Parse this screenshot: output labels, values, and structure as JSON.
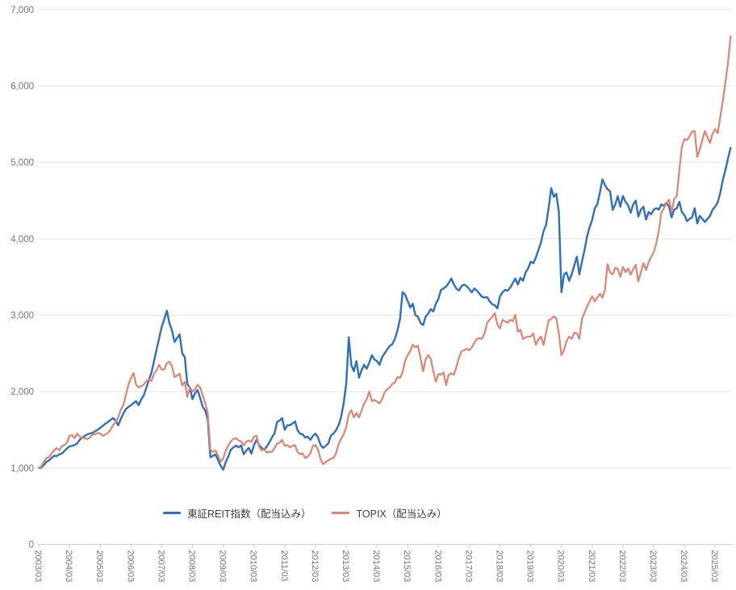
{
  "chart_data": {
    "type": "line",
    "title": "",
    "xlabel": "",
    "ylabel": "",
    "ylim": [
      0,
      7000
    ],
    "grid": "horizontal",
    "legend_position": "bottom-inside-left",
    "start_month": "2003/03",
    "end_month": "2025/09",
    "months_per_x_tick": 12,
    "x_tick_labels": [
      "2003/03",
      "2004/03",
      "2005/03",
      "2006/03",
      "2007/03",
      "2008/03",
      "2009/03",
      "2010/03",
      "2011/03",
      "2012/03",
      "2013/03",
      "2014/03",
      "2015/03",
      "2016/03",
      "2017/03",
      "2018/03",
      "2019/03",
      "2020/03",
      "2021/03",
      "2022/03",
      "2023/03",
      "2024/03",
      "2025/03"
    ],
    "y_ticks": [
      {
        "value": 0,
        "label": "0"
      },
      {
        "value": 1000,
        "label": "1,000"
      },
      {
        "value": 2000,
        "label": "2,000"
      },
      {
        "value": 3000,
        "label": "3,000"
      },
      {
        "value": 4000,
        "label": "4,000"
      },
      {
        "value": 5000,
        "label": "5,000"
      },
      {
        "value": 6000,
        "label": "6,000"
      },
      {
        "value": 7000,
        "label": "7,000"
      }
    ],
    "colors": {
      "grid": "#e3e3e3",
      "axis": "#c9d4ee",
      "tick_label": "#757575",
      "legend_text": "#3d3d3d",
      "background": "#ffffff"
    },
    "series": [
      {
        "name": "東証REIT指数（配当込み）",
        "color": "#2e6fbe",
        "values": [
          1000,
          1005,
          1040,
          1080,
          1100,
          1130,
          1160,
          1155,
          1180,
          1190,
          1220,
          1255,
          1283,
          1290,
          1300,
          1320,
          1370,
          1400,
          1421,
          1440,
          1452,
          1460,
          1480,
          1500,
          1526,
          1550,
          1580,
          1600,
          1630,
          1653,
          1620,
          1558,
          1640,
          1710,
          1769,
          1800,
          1822,
          1850,
          1875,
          1822,
          1900,
          1950,
          2050,
          2150,
          2250,
          2400,
          2550,
          2700,
          2847,
          2950,
          3058,
          2899,
          2800,
          2650,
          2700,
          2750,
          2500,
          2450,
          2100,
          2050,
          1900,
          1980,
          2020,
          1917,
          1800,
          1750,
          1632,
          1140,
          1160,
          1177,
          1100,
          1030,
          977,
          1080,
          1150,
          1241,
          1270,
          1294,
          1270,
          1294,
          1180,
          1230,
          1262,
          1188,
          1300,
          1368,
          1300,
          1262,
          1241,
          1280,
          1336,
          1400,
          1450,
          1600,
          1620,
          1653,
          1500,
          1558,
          1560,
          1580,
          1610,
          1494,
          1450,
          1440,
          1400,
          1410,
          1368,
          1420,
          1450,
          1400,
          1300,
          1262,
          1290,
          1320,
          1421,
          1450,
          1494,
          1558,
          1663,
          1843,
          2100,
          2709,
          2350,
          2265,
          2400,
          2181,
          2280,
          2350,
          2300,
          2380,
          2476,
          2420,
          2400,
          2350,
          2450,
          2500,
          2550,
          2600,
          2620,
          2688,
          2800,
          2950,
          3301,
          3268,
          3184,
          3100,
          3150,
          3000,
          2980,
          2899,
          2870,
          2980,
          3020,
          3079,
          3050,
          3150,
          3216,
          3330,
          3350,
          3374,
          3420,
          3480,
          3400,
          3350,
          3322,
          3380,
          3400,
          3380,
          3343,
          3300,
          3350,
          3322,
          3280,
          3240,
          3230,
          3237,
          3180,
          3142,
          3130,
          3090,
          3248,
          3300,
          3330,
          3320,
          3360,
          3420,
          3480,
          3400,
          3490,
          3450,
          3560,
          3610,
          3700,
          3680,
          3750,
          3850,
          3950,
          4100,
          4180,
          4400,
          4662,
          4550,
          4588,
          4350,
          3301,
          3533,
          3560,
          3450,
          3533,
          3650,
          3765,
          3533,
          3700,
          3850,
          4029,
          4150,
          4250,
          4400,
          4450,
          4600,
          4778,
          4700,
          4650,
          4620,
          4377,
          4450,
          4557,
          4420,
          4560,
          4483,
          4440,
          4340,
          4450,
          4500,
          4290,
          4380,
          4420,
          4250,
          4350,
          4320,
          4380,
          4400,
          4380,
          4450,
          4430,
          4470,
          4420,
          4280,
          4380,
          4400,
          4483,
          4350,
          4310,
          4230,
          4260,
          4280,
          4400,
          4200,
          4300,
          4260,
          4220,
          4260,
          4300,
          4380,
          4420,
          4480,
          4600,
          4770,
          4900,
          5050,
          5190
        ]
      },
      {
        "name": "TOPIX（配当込み）",
        "color": "#e08370",
        "values": [
          1000,
          1020,
          1083,
          1130,
          1140,
          1190,
          1230,
          1262,
          1230,
          1283,
          1300,
          1330,
          1421,
          1430,
          1390,
          1452,
          1410,
          1389,
          1390,
          1380,
          1400,
          1440,
          1440,
          1460,
          1452,
          1420,
          1440,
          1460,
          1500,
          1560,
          1600,
          1660,
          1760,
          1822,
          1950,
          2086,
          2180,
          2244,
          2090,
          2054,
          2070,
          2090,
          2139,
          2160,
          2140,
          2234,
          2280,
          2350,
          2287,
          2290,
          2371,
          2392,
          2330,
          2191,
          2210,
          2234,
          2080,
          2128,
          1930,
          2054,
          2001,
          2030,
          2090,
          2054,
          1950,
          1843,
          1716,
          1241,
          1209,
          1230,
          1160,
          1083,
          1125,
          1230,
          1294,
          1350,
          1380,
          1389,
          1360,
          1347,
          1294,
          1347,
          1360,
          1340,
          1410,
          1421,
          1280,
          1230,
          1250,
          1200,
          1210,
          1210,
          1260,
          1320,
          1330,
          1370,
          1290,
          1300,
          1270,
          1290,
          1300,
          1210,
          1180,
          1190,
          1130,
          1150,
          1190,
          1290,
          1300,
          1240,
          1110,
          1051,
          1080,
          1100,
          1120,
          1130,
          1190,
          1310,
          1380,
          1440,
          1530,
          1700,
          1758,
          1663,
          1720,
          1660,
          1750,
          1843,
          1900,
          2001,
          1875,
          1890,
          1870,
          1843,
          1900,
          1990,
          2030,
          2054,
          2100,
          2120,
          2191,
          2180,
          2250,
          2400,
          2477,
          2530,
          2614,
          2582,
          2600,
          2440,
          2265,
          2420,
          2477,
          2430,
          2260,
          2128,
          2230,
          2220,
          2250,
          2086,
          2220,
          2240,
          2220,
          2320,
          2440,
          2530,
          2540,
          2560,
          2540,
          2580,
          2640,
          2690,
          2700,
          2690,
          2760,
          2900,
          2940,
          2980,
          3026,
          2880,
          2825,
          2940,
          2920,
          2900,
          2940,
          2920,
          3005,
          2780,
          2810,
          2688,
          2710,
          2720,
          2720,
          2760,
          2614,
          2680,
          2720,
          2610,
          2770,
          2930,
          2950,
          2983,
          2960,
          2760,
          2477,
          2540,
          2660,
          2720,
          2690,
          2770,
          2762,
          2690,
          2950,
          3030,
          3111,
          3180,
          3248,
          3180,
          3230,
          3280,
          3230,
          3330,
          3670,
          3560,
          3533,
          3620,
          3606,
          3501,
          3630,
          3564,
          3610,
          3530,
          3600,
          3660,
          3440,
          3560,
          3680,
          3590,
          3690,
          3760,
          3820,
          3940,
          4100,
          4340,
          4398,
          4470,
          4510,
          4350,
          4520,
          4560,
          4900,
          5200,
          5306,
          5290,
          5340,
          5402,
          5410,
          5070,
          5170,
          5290,
          5413,
          5330,
          5254,
          5380,
          5434,
          5380,
          5600,
          5800,
          6050,
          6300,
          6648
        ]
      }
    ]
  }
}
